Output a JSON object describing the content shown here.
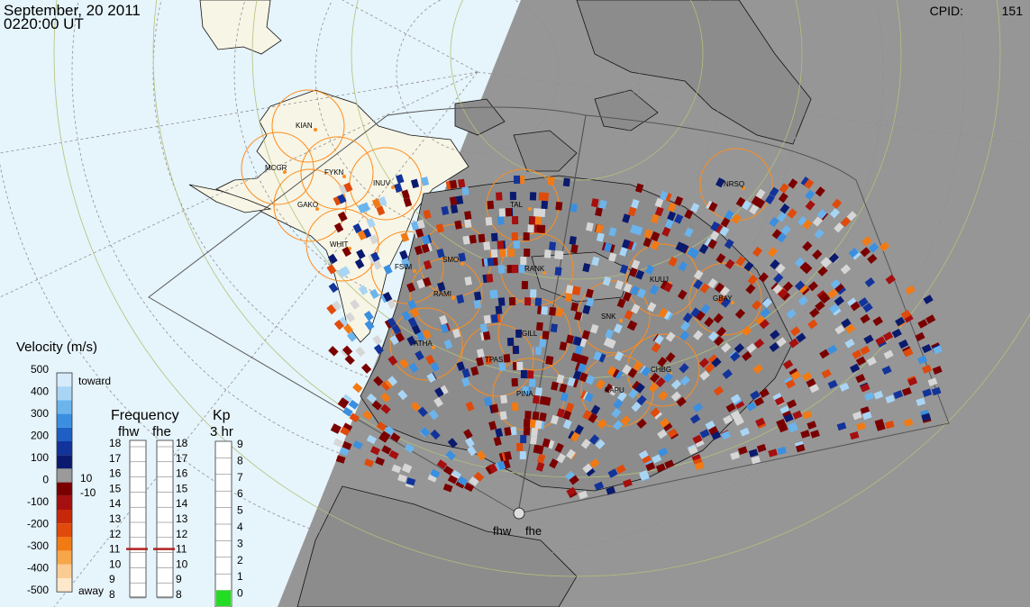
{
  "header": {
    "date": "September, 20 2011",
    "time": "0220:00 UT",
    "cpid_label": "CPID:",
    "cpid_value": "151"
  },
  "colors": {
    "ocean_day": "#e6f4fb",
    "night": "#969696",
    "land": "#f7f5e6",
    "grid": "#999999",
    "fov_circle": "#ff8c1a",
    "coast": "#111111"
  },
  "stations": [
    "KIAN",
    "MCGR",
    "FYKN",
    "INUV",
    "GAKO",
    "WHIT",
    "FSIM",
    "SMO",
    "RANK",
    "TAL",
    "NRSQ",
    "KUUJ",
    "GBAY",
    "SNK",
    "GILL",
    "ATHA",
    "RAMI",
    "TPAS",
    "PINA",
    "KAPU",
    "CHBG"
  ],
  "radar_sites": [
    "fhw",
    "fhe"
  ],
  "velocity_scale": {
    "title": "Velocity (m/s)",
    "ticks": [
      "500",
      "400",
      "300",
      "200",
      "100",
      "0",
      "-100",
      "-200",
      "-300",
      "-400",
      "-500"
    ],
    "toward_label": "toward",
    "away_label": "away",
    "ground_scatter_labels": [
      "10",
      "-10"
    ],
    "colors_top_to_bottom": [
      "#d6ecfb",
      "#a9d5f5",
      "#6cb4ec",
      "#3a8fe0",
      "#1e5fc4",
      "#12339a",
      "#0a1a6e",
      "#9a9a9a",
      "#7a0000",
      "#a50f0f",
      "#c8280a",
      "#e04a0a",
      "#f27a14",
      "#f7a64a",
      "#fbcc91",
      "#fde8cc"
    ]
  },
  "frequency_panel": {
    "title": "Frequency",
    "sublabels": [
      "fhw",
      "fhe"
    ],
    "ticks": [
      "18",
      "17",
      "16",
      "15",
      "14",
      "13",
      "12",
      "11",
      "10",
      "9",
      "8"
    ],
    "fhw_mhz": 11,
    "fhe_mhz": 11,
    "marker_color": "#b22222"
  },
  "kp_panel": {
    "title": "Kp",
    "subtitle": "3 hr",
    "ticks": [
      "9",
      "8",
      "7",
      "6",
      "5",
      "4",
      "3",
      "2",
      "1",
      "0"
    ],
    "value": 1,
    "fill_color": "#22dd22"
  }
}
